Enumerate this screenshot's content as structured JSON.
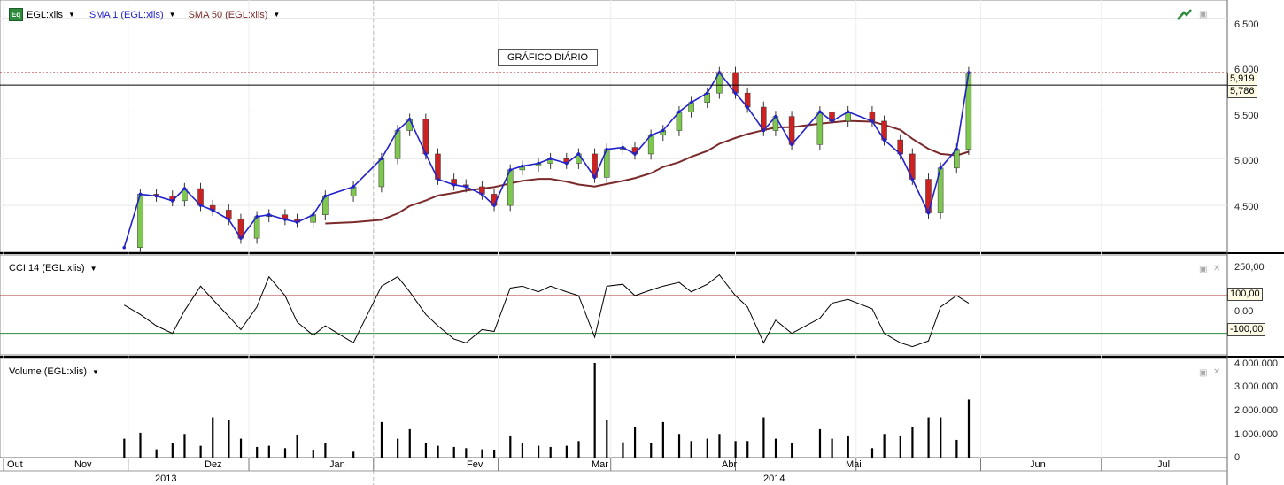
{
  "price_panel": {
    "ticker_label": "EGL:xlis",
    "ticker_icon": "equity-icon",
    "sma1_label": "SMA 1 (EGL:xlis)",
    "sma50_label": "SMA 50 (EGL:xlis)",
    "annotation": "GRÁFICO DIÁRIO",
    "last_price_tag": "5,919",
    "hline_tag": "5,786",
    "y_ticks": [
      "6,500",
      "6,000",
      "5,500",
      "5,000",
      "4,500"
    ],
    "colors": {
      "sma1": "#2222cc",
      "sma50": "#7a2a2a",
      "up": "#7ec850",
      "down": "#cc2222"
    }
  },
  "cci_panel": {
    "label": "CCI 14 (EGL:xlis)",
    "upper_tag": "100,00",
    "lower_tag": "-100,00",
    "y_ticks": [
      "250,00",
      "0,00"
    ],
    "colors": {
      "upper": "#b03030",
      "lower": "#2e8b3e"
    }
  },
  "volume_panel": {
    "label": "Volume (EGL:xlis)",
    "y_ticks": [
      "4.000.000",
      "3.000.000",
      "2.000.000",
      "1.000.000",
      "0"
    ]
  },
  "x_axis": {
    "months": [
      "Out",
      "Nov",
      "Dez",
      "Jan",
      "Fev",
      "Mar",
      "Abr",
      "Mai",
      "Jun",
      "Jul"
    ],
    "years": [
      "2013",
      "2014"
    ]
  },
  "chart_data": {
    "type": "line",
    "x": [
      "2013-10-31",
      "2013-11-04",
      "2013-11-08",
      "2013-11-12",
      "2013-11-15",
      "2013-11-19",
      "2013-11-22",
      "2013-11-26",
      "2013-11-29",
      "2013-12-03",
      "2013-12-06",
      "2013-12-10",
      "2013-12-13",
      "2013-12-17",
      "2013-12-20",
      "2013-12-27",
      "2014-01-03",
      "2014-01-07",
      "2014-01-10",
      "2014-01-14",
      "2014-01-17",
      "2014-01-21",
      "2014-01-24",
      "2014-01-28",
      "2014-01-31",
      "2014-02-04",
      "2014-02-07",
      "2014-02-11",
      "2014-02-14",
      "2014-02-18",
      "2014-02-21",
      "2014-02-25",
      "2014-02-28",
      "2014-03-04",
      "2014-03-07",
      "2014-03-11",
      "2014-03-14",
      "2014-03-18",
      "2014-03-21",
      "2014-03-25",
      "2014-03-28",
      "2014-04-01",
      "2014-04-04",
      "2014-04-08",
      "2014-04-11",
      "2014-04-15",
      "2014-04-22",
      "2014-04-25",
      "2014-04-29",
      "2014-05-05",
      "2014-05-08",
      "2014-05-12",
      "2014-05-15",
      "2014-05-19",
      "2014-05-22",
      "2014-05-26",
      "2014-05-29"
    ],
    "series": [
      {
        "values": [
          4.05,
          4.62,
          4.6,
          4.55,
          4.68,
          4.5,
          4.45,
          4.35,
          4.15,
          4.38,
          4.4,
          4.35,
          4.32,
          4.4,
          4.6,
          4.7,
          5.0,
          5.3,
          5.42,
          5.05,
          4.78,
          4.72,
          4.7,
          4.62,
          4.5,
          4.88,
          4.92,
          4.95,
          5.0,
          4.95,
          5.05,
          4.8,
          5.1,
          5.12,
          5.05,
          5.25,
          5.3,
          5.5,
          5.6,
          5.7,
          5.92,
          5.7,
          5.55,
          5.3,
          5.45,
          5.15,
          5.5,
          5.4,
          5.5,
          5.4,
          5.2,
          5.05,
          4.78,
          4.42,
          4.9,
          5.1,
          5.919
        ]
      }
    ],
    "hline": 5.786,
    "ylim": [
      4.0,
      6.6
    ],
    "grid": true,
    "volume": [
      800000,
      1050000,
      350000,
      600000,
      1000000,
      500000,
      1700000,
      1600000,
      800000,
      450000,
      500000,
      400000,
      950000,
      300000,
      600000,
      250000,
      1500000,
      800000,
      1200000,
      600000,
      500000,
      450000,
      400000,
      350000,
      300000,
      900000,
      600000,
      500000,
      450000,
      500000,
      700000,
      4000000,
      1600000,
      650000,
      1300000,
      600000,
      1500000,
      1000000,
      700000,
      800000,
      1000000,
      700000,
      700000,
      1700000,
      800000,
      600000,
      1200000,
      800000,
      900000,
      400000,
      1000000,
      900000,
      1300000,
      1700000,
      1700000,
      750000,
      2450000
    ],
    "cci": [
      50,
      0,
      -60,
      -100,
      20,
      150,
      80,
      -10,
      -80,
      40,
      200,
      100,
      -40,
      -110,
      -60,
      -150,
      150,
      200,
      120,
      0,
      -60,
      -130,
      -150,
      -80,
      -90,
      140,
      150,
      120,
      150,
      120,
      100,
      -120,
      150,
      160,
      100,
      130,
      150,
      170,
      120,
      160,
      210,
      100,
      40,
      -150,
      -30,
      -100,
      -20,
      60,
      80,
      30,
      -100,
      -150,
      -170,
      -140,
      40,
      100,
      60
    ]
  }
}
